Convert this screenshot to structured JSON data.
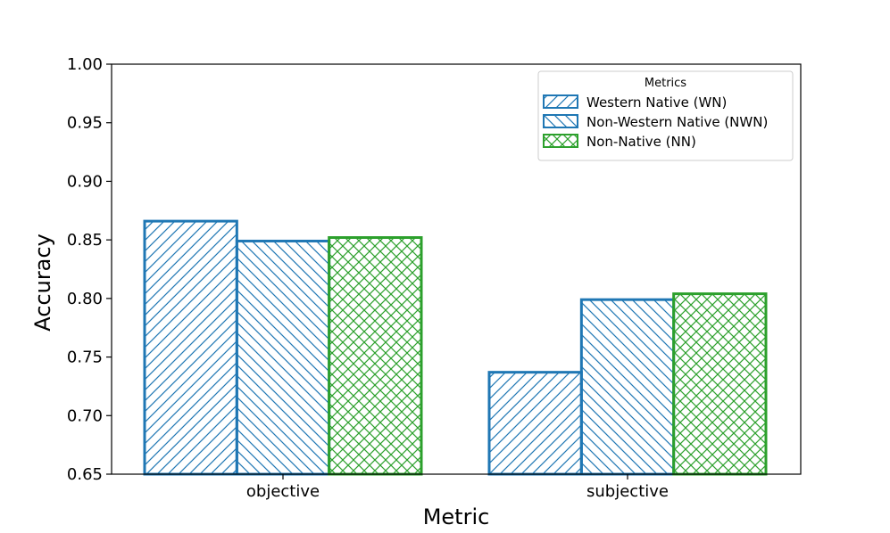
{
  "chart_data": {
    "type": "bar",
    "title": "",
    "xlabel": "Metric",
    "ylabel": "Accuracy",
    "categories": [
      "objective",
      "subjective"
    ],
    "ylim": [
      0.65,
      1.0
    ],
    "yticks": [
      0.65,
      0.7,
      0.75,
      0.8,
      0.85,
      0.9,
      0.95,
      1.0
    ],
    "ytick_labels": [
      "0.65",
      "0.70",
      "0.75",
      "0.80",
      "0.85",
      "0.90",
      "0.95",
      "1.00"
    ],
    "legend": {
      "title": "Metrics",
      "position": "top-right"
    },
    "series": [
      {
        "name": "Western Native (WN)",
        "values": [
          0.866,
          0.737
        ],
        "color": "#1f77b4",
        "hatch": "forward"
      },
      {
        "name": "Non-Western Native (NWN)",
        "values": [
          0.849,
          0.799
        ],
        "color": "#1f77b4",
        "hatch": "backward"
      },
      {
        "name": "Non-Native (NN)",
        "values": [
          0.852,
          0.804
        ],
        "color": "#2ca02c",
        "hatch": "cross"
      }
    ]
  }
}
